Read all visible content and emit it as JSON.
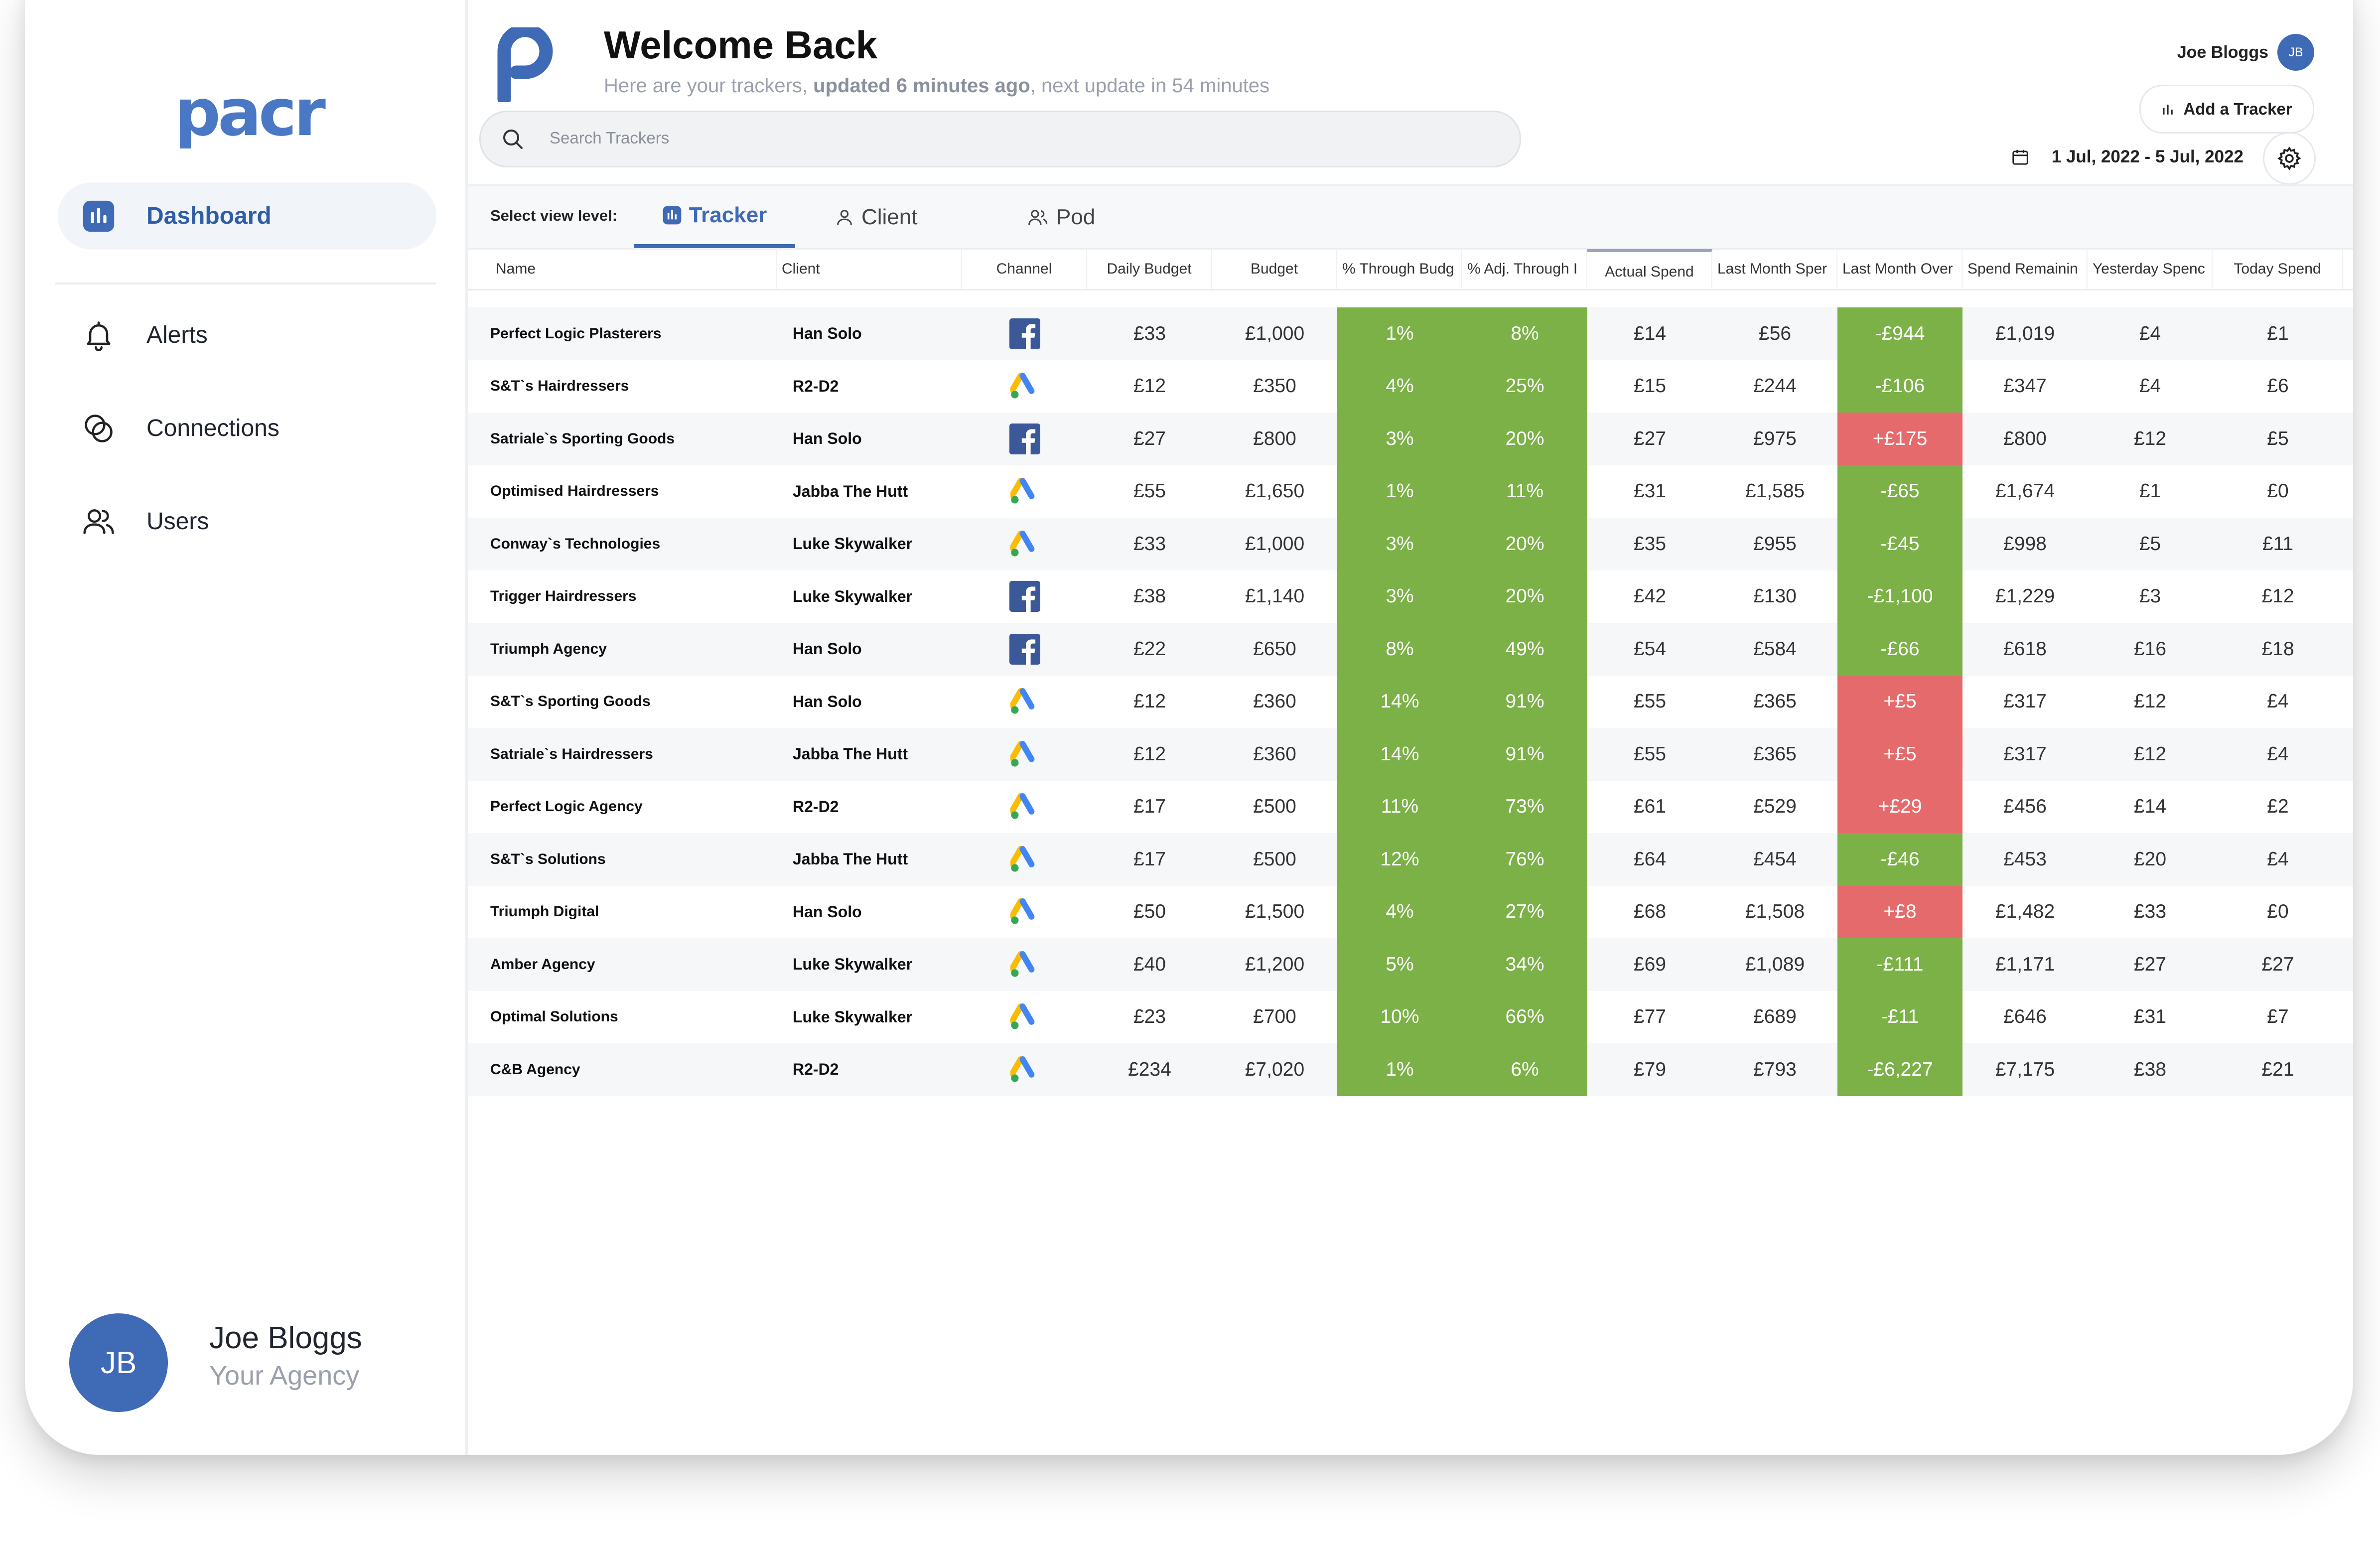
{
  "app": {
    "brand": "pacr",
    "sidebar": {
      "items": [
        {
          "label": "Dashboard",
          "icon": "chart-bar-icon",
          "active": true
        },
        {
          "label": "Alerts",
          "icon": "bell-icon"
        },
        {
          "label": "Connections",
          "icon": "connections-icon"
        },
        {
          "label": "Users",
          "icon": "users-icon"
        }
      ],
      "profile": {
        "initials": "JB",
        "name": "Joe Bloggs",
        "agency": "Your Agency"
      }
    }
  },
  "header": {
    "title": "Welcome Back",
    "subtitle_prefix": "Here are your trackers, ",
    "subtitle_bold": "updated 6 minutes ago",
    "subtitle_suffix": ", next update in 54 minutes",
    "search_placeholder": "Search Trackers",
    "user_name": "Joe Bloggs",
    "user_initials": "JB",
    "add_tracker": "Add a Tracker",
    "date_range": "1 Jul, 2022 - 5 Jul, 2022"
  },
  "view": {
    "select_label": "Select view level:",
    "tabs": [
      {
        "label": "Tracker",
        "active": true
      },
      {
        "label": "Client"
      },
      {
        "label": "Pod"
      }
    ]
  },
  "colors": {
    "accent": "#3f6ab5",
    "good": "#7bb147",
    "bad": "#e56a6c"
  },
  "table": {
    "columns": [
      "Name",
      "Client",
      "Channel",
      "Daily Budget",
      "Budget",
      "% Through Budg",
      "% Adj. Through I",
      "Actual Spend",
      "Last Month Sper",
      "Last Month Over",
      "Spend Remainin",
      "Yesterday Spenc",
      "Today Spend"
    ],
    "rows": [
      {
        "name": "Perfect Logic Plasterers",
        "client": "Han Solo",
        "channel": "facebook",
        "daily": "£33",
        "budget": "£1,000",
        "through": "1%",
        "adj": "8%",
        "actual": "£14",
        "last": "£56",
        "over": "-£944",
        "over_status": "good",
        "remaining": "£1,019",
        "yesterday": "£4",
        "today": "£1"
      },
      {
        "name": "S&T`s Hairdressers",
        "client": "R2-D2",
        "channel": "google-ads",
        "daily": "£12",
        "budget": "£350",
        "through": "4%",
        "adj": "25%",
        "actual": "£15",
        "last": "£244",
        "over": "-£106",
        "over_status": "good",
        "remaining": "£347",
        "yesterday": "£4",
        "today": "£6"
      },
      {
        "name": "Satriale`s Sporting Goods",
        "client": "Han Solo",
        "channel": "facebook",
        "daily": "£27",
        "budget": "£800",
        "through": "3%",
        "adj": "20%",
        "actual": "£27",
        "last": "£975",
        "over": "+£175",
        "over_status": "bad",
        "remaining": "£800",
        "yesterday": "£12",
        "today": "£5"
      },
      {
        "name": "Optimised Hairdressers",
        "client": "Jabba The Hutt",
        "channel": "google-ads",
        "daily": "£55",
        "budget": "£1,650",
        "through": "1%",
        "adj": "11%",
        "actual": "£31",
        "last": "£1,585",
        "over": "-£65",
        "over_status": "good",
        "remaining": "£1,674",
        "yesterday": "£1",
        "today": "£0"
      },
      {
        "name": "Conway`s Technologies",
        "client": "Luke Skywalker",
        "channel": "google-ads",
        "daily": "£33",
        "budget": "£1,000",
        "through": "3%",
        "adj": "20%",
        "actual": "£35",
        "last": "£955",
        "over": "-£45",
        "over_status": "good",
        "remaining": "£998",
        "yesterday": "£5",
        "today": "£11"
      },
      {
        "name": "Trigger Hairdressers",
        "client": "Luke Skywalker",
        "channel": "facebook",
        "daily": "£38",
        "budget": "£1,140",
        "through": "3%",
        "adj": "20%",
        "actual": "£42",
        "last": "£130",
        "over": "-£1,100",
        "over_status": "good",
        "remaining": "£1,229",
        "yesterday": "£3",
        "today": "£12"
      },
      {
        "name": "Triumph Agency",
        "client": "Han Solo",
        "channel": "facebook",
        "daily": "£22",
        "budget": "£650",
        "through": "8%",
        "adj": "49%",
        "actual": "£54",
        "last": "£584",
        "over": "-£66",
        "over_status": "good",
        "remaining": "£618",
        "yesterday": "£16",
        "today": "£18"
      },
      {
        "name": "S&T`s Sporting Goods",
        "client": "Han Solo",
        "channel": "google-ads",
        "daily": "£12",
        "budget": "£360",
        "through": "14%",
        "adj": "91%",
        "actual": "£55",
        "last": "£365",
        "over": "+£5",
        "over_status": "bad",
        "remaining": "£317",
        "yesterday": "£12",
        "today": "£4"
      },
      {
        "name": "Satriale`s Hairdressers",
        "client": "Jabba The Hutt",
        "channel": "google-ads",
        "daily": "£12",
        "budget": "£360",
        "through": "14%",
        "adj": "91%",
        "actual": "£55",
        "last": "£365",
        "over": "+£5",
        "over_status": "bad",
        "remaining": "£317",
        "yesterday": "£12",
        "today": "£4"
      },
      {
        "name": "Perfect Logic Agency",
        "client": "R2-D2",
        "channel": "google-ads",
        "daily": "£17",
        "budget": "£500",
        "through": "11%",
        "adj": "73%",
        "actual": "£61",
        "last": "£529",
        "over": "+£29",
        "over_status": "bad",
        "remaining": "£456",
        "yesterday": "£14",
        "today": "£2"
      },
      {
        "name": "S&T`s Solutions",
        "client": "Jabba The Hutt",
        "channel": "google-ads",
        "daily": "£17",
        "budget": "£500",
        "through": "12%",
        "adj": "76%",
        "actual": "£64",
        "last": "£454",
        "over": "-£46",
        "over_status": "good",
        "remaining": "£453",
        "yesterday": "£20",
        "today": "£4"
      },
      {
        "name": "Triumph Digital",
        "client": "Han Solo",
        "channel": "google-ads",
        "daily": "£50",
        "budget": "£1,500",
        "through": "4%",
        "adj": "27%",
        "actual": "£68",
        "last": "£1,508",
        "over": "+£8",
        "over_status": "bad",
        "remaining": "£1,482",
        "yesterday": "£33",
        "today": "£0"
      },
      {
        "name": "Amber Agency",
        "client": "Luke Skywalker",
        "channel": "google-ads",
        "daily": "£40",
        "budget": "£1,200",
        "through": "5%",
        "adj": "34%",
        "actual": "£69",
        "last": "£1,089",
        "over": "-£111",
        "over_status": "good",
        "remaining": "£1,171",
        "yesterday": "£27",
        "today": "£27"
      },
      {
        "name": "Optimal Solutions",
        "client": "Luke Skywalker",
        "channel": "google-ads",
        "daily": "£23",
        "budget": "£700",
        "through": "10%",
        "adj": "66%",
        "actual": "£77",
        "last": "£689",
        "over": "-£11",
        "over_status": "good",
        "remaining": "£646",
        "yesterday": "£31",
        "today": "£7"
      },
      {
        "name": "C&B Agency",
        "client": "R2-D2",
        "channel": "google-ads",
        "daily": "£234",
        "budget": "£7,020",
        "through": "1%",
        "adj": "6%",
        "actual": "£79",
        "last": "£793",
        "over": "-£6,227",
        "over_status": "good",
        "remaining": "£7,175",
        "yesterday": "£38",
        "today": "£21"
      }
    ]
  }
}
